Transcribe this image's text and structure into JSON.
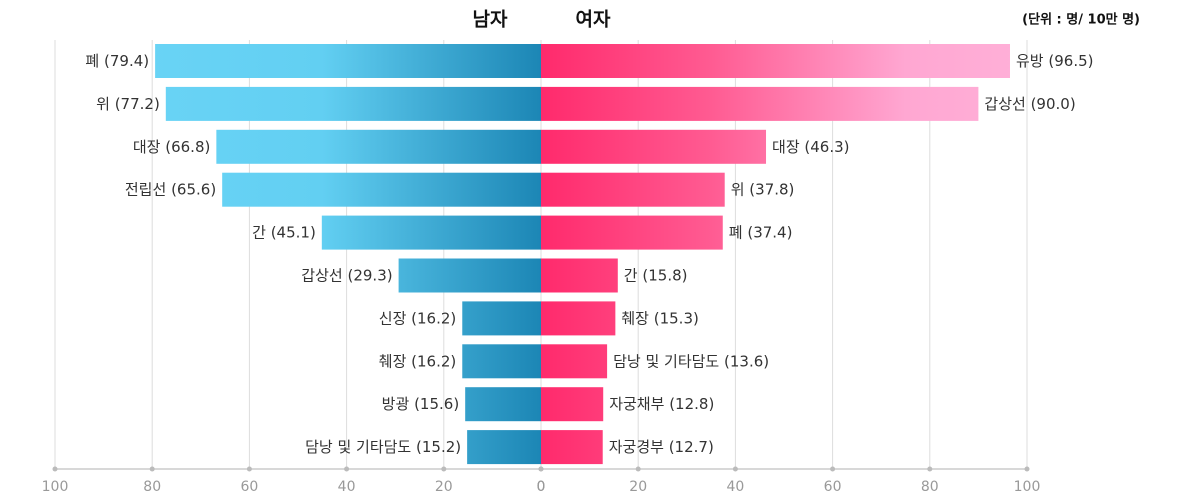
{
  "unit_label": "(단위 : 명/ 10만 명)",
  "chart_data": [
    {
      "type": "bar",
      "title": "남자",
      "color": "#1e8ab8",
      "categories": [
        "폐",
        "위",
        "대장",
        "전립선",
        "간",
        "갑상선",
        "신장",
        "췌장",
        "방광",
        "담낭 및 기타담도"
      ],
      "values": [
        79.4,
        77.2,
        66.8,
        65.6,
        45.1,
        29.3,
        16.2,
        16.2,
        15.6,
        15.2
      ],
      "value_labels": [
        "(79.4)",
        "(77.2)",
        "(66.8)",
        "(65.6)",
        "(45.1)",
        "(29.3)",
        "(16.2)",
        "(16.2)",
        "(15.6)",
        "(15.2)"
      ],
      "xlim": [
        100,
        0
      ],
      "xticks": [
        100,
        80,
        60,
        40,
        20,
        0
      ],
      "grid": true
    },
    {
      "type": "bar",
      "title": "여자",
      "color": "#ff2d6f",
      "categories": [
        "유방",
        "갑상선",
        "대장",
        "위",
        "폐",
        "간",
        "췌장",
        "담낭 및 기타담도",
        "자궁채부",
        "자궁경부"
      ],
      "values": [
        96.5,
        90.0,
        46.3,
        37.8,
        37.4,
        15.8,
        15.3,
        13.6,
        12.8,
        12.7
      ],
      "value_labels": [
        "(96.5)",
        "(90.0)",
        "(46.3)",
        "(37.8)",
        "(37.4)",
        "(15.8)",
        "(15.3)",
        "(13.6)",
        "(12.8)",
        "(12.7)"
      ],
      "xlim": [
        0,
        100
      ],
      "xticks": [
        0,
        20,
        40,
        60,
        80,
        100
      ],
      "grid": true
    }
  ]
}
